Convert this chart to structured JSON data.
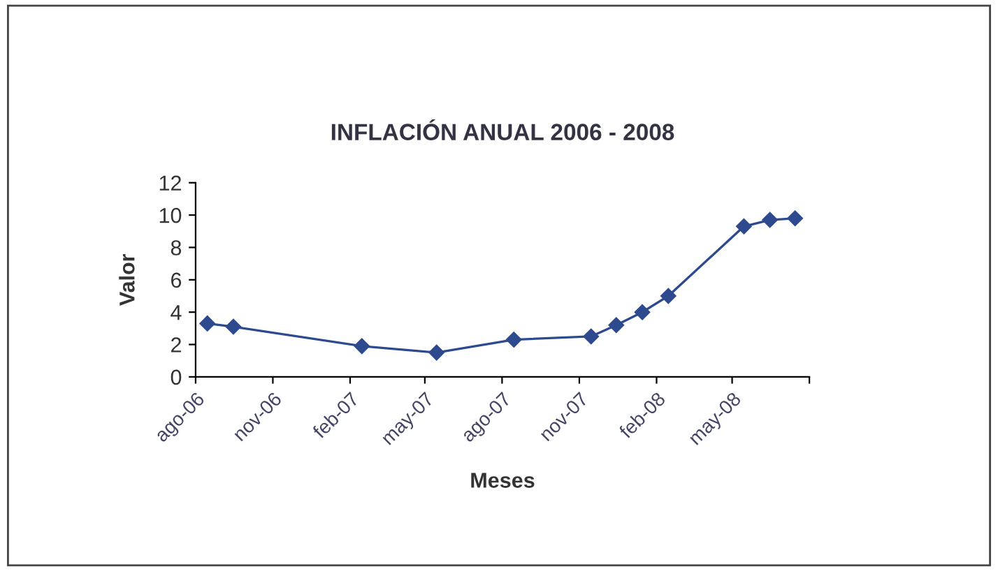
{
  "chart_data": {
    "type": "line",
    "title": "INFLACIÓN ANUAL 2006 - 2008",
    "xlabel": "Meses",
    "ylabel": "Valor",
    "x": [
      "2006-08-15",
      "2006-09-15",
      "2007-02-15",
      "2007-05-15",
      "2007-08-15",
      "2007-11-15",
      "2007-12-15",
      "2008-01-15",
      "2008-02-15",
      "2008-05-15",
      "2008-06-15",
      "2008-07-15"
    ],
    "series": [
      {
        "color": "#2e4a8f",
        "values": [
          3.3,
          3.1,
          1.9,
          1.5,
          2.3,
          2.5,
          3.2,
          4.0,
          5.0,
          9.3,
          9.7,
          9.8
        ]
      }
    ],
    "xlim": [
      "2006-08-01",
      "2008-08-01"
    ],
    "xticks": [
      {
        "value": "2006-08-01",
        "label": "ago-06"
      },
      {
        "value": "2006-11-01",
        "label": "nov-06"
      },
      {
        "value": "2007-02-01",
        "label": "feb-07"
      },
      {
        "value": "2007-05-01",
        "label": "may-07"
      },
      {
        "value": "2007-08-01",
        "label": "ago-07"
      },
      {
        "value": "2007-11-01",
        "label": "nov-07"
      },
      {
        "value": "2008-02-01",
        "label": "feb-08"
      },
      {
        "value": "2008-05-01",
        "label": "may-08"
      },
      {
        "value": "2008-08-01",
        "label": null
      }
    ],
    "ylim": [
      0,
      12
    ],
    "yticks": [
      0,
      2,
      4,
      6,
      8,
      10,
      12
    ],
    "marker": "diamond",
    "line_style": "solid",
    "grid": false,
    "legend": false
  }
}
